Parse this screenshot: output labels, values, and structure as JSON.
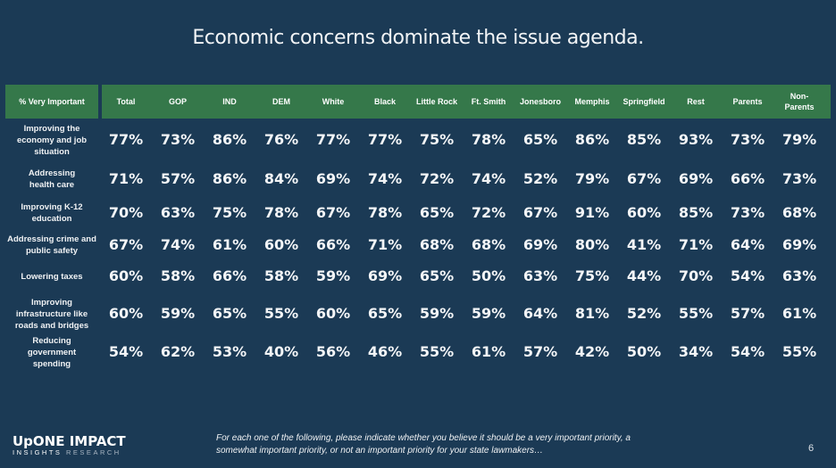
{
  "title": "Economic concerns dominate the issue agenda.",
  "table": {
    "corner_label": "% Very Important",
    "columns": [
      "Total",
      "GOP",
      "IND",
      "DEM",
      "White",
      "Black",
      "Little Rock",
      "Ft. Smith",
      "Jonesboro",
      "Memphis",
      "Springfield",
      "Rest",
      "Parents",
      "Non-Parents"
    ],
    "rows": [
      {
        "label": "Improving the economy and job situation",
        "values": [
          "77%",
          "73%",
          "86%",
          "76%",
          "77%",
          "77%",
          "75%",
          "78%",
          "65%",
          "86%",
          "85%",
          "93%",
          "73%",
          "79%"
        ]
      },
      {
        "label": "Addressing health care",
        "values": [
          "71%",
          "57%",
          "86%",
          "84%",
          "69%",
          "74%",
          "72%",
          "74%",
          "52%",
          "79%",
          "67%",
          "69%",
          "66%",
          "73%"
        ]
      },
      {
        "label": "Improving K-12 education",
        "values": [
          "70%",
          "63%",
          "75%",
          "78%",
          "67%",
          "78%",
          "65%",
          "72%",
          "67%",
          "91%",
          "60%",
          "85%",
          "73%",
          "68%"
        ]
      },
      {
        "label": "Addressing crime and public safety",
        "values": [
          "67%",
          "74%",
          "61%",
          "60%",
          "66%",
          "71%",
          "68%",
          "68%",
          "69%",
          "80%",
          "41%",
          "71%",
          "64%",
          "69%"
        ]
      },
      {
        "label": "Lowering taxes",
        "values": [
          "60%",
          "58%",
          "66%",
          "58%",
          "59%",
          "69%",
          "65%",
          "50%",
          "63%",
          "75%",
          "44%",
          "70%",
          "54%",
          "63%"
        ]
      },
      {
        "label": "Improving infrastructure like roads and bridges",
        "values": [
          "60%",
          "59%",
          "65%",
          "55%",
          "60%",
          "65%",
          "59%",
          "59%",
          "64%",
          "81%",
          "52%",
          "55%",
          "57%",
          "61%"
        ]
      },
      {
        "label": "Reducing government spending",
        "values": [
          "54%",
          "62%",
          "53%",
          "40%",
          "56%",
          "46%",
          "55%",
          "61%",
          "57%",
          "42%",
          "50%",
          "34%",
          "54%",
          "55%"
        ]
      }
    ]
  },
  "footer": {
    "logo_top": "UpONE IMPACT",
    "logo_bottom_a": "INSIGHTS",
    "logo_bottom_b": "RESEARCH",
    "note": "For each one of the following, please indicate whether you believe it should be a very important priority, a somewhat important priority, or not an important priority for your state lawmakers…",
    "page_number": "6"
  },
  "colors": {
    "background": "#1b3a55",
    "header_green": "#35784a"
  }
}
